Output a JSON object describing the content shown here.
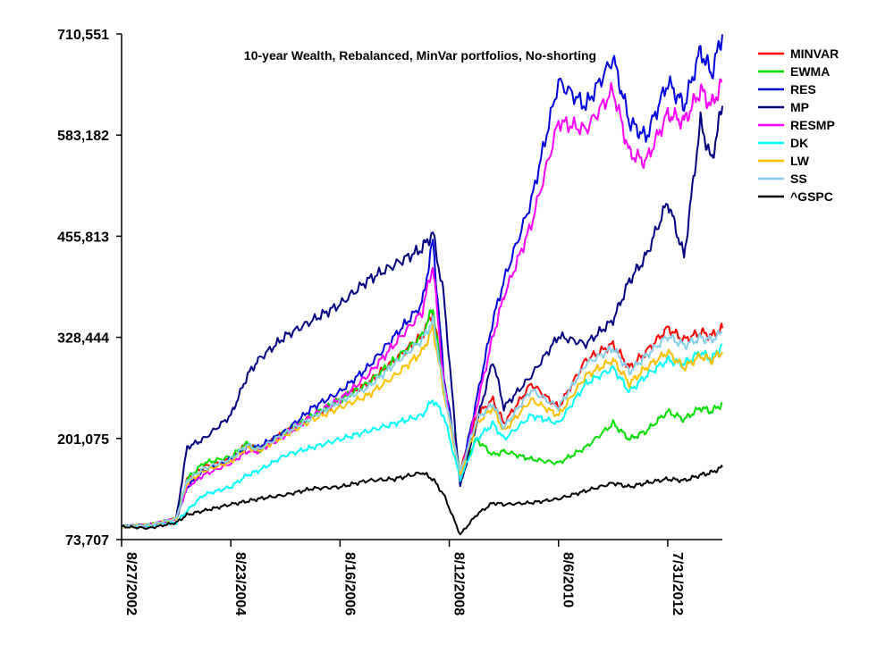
{
  "chart_data": {
    "type": "line",
    "title": "10-year Wealth, Rebalanced, MinVar portfolios, No-shorting",
    "xlabel": "",
    "ylabel": "",
    "ylim": [
      73707,
      710551
    ],
    "y_ticks": [
      "710,551",
      "583,182",
      "455,813",
      "328,444",
      "201,075",
      "73,707"
    ],
    "y_tick_values": [
      710551,
      583182,
      455813,
      328444,
      201075,
      73707
    ],
    "x_ticks": [
      "8/27/2002",
      "8/23/2004",
      "8/16/2006",
      "8/12/2008",
      "8/6/2010",
      "7/31/2012"
    ],
    "x_tick_years": [
      0,
      2,
      4,
      6,
      8,
      10
    ],
    "x": [
      0,
      0.5,
      1.0,
      1.2,
      1.5,
      2.0,
      2.3,
      2.5,
      3.0,
      3.5,
      4.0,
      4.5,
      5.0,
      5.5,
      5.7,
      5.9,
      6.2,
      6.5,
      6.8,
      7.0,
      7.5,
      8.0,
      8.5,
      9.0,
      9.3,
      9.6,
      10.0,
      10.3,
      10.6,
      10.8,
      11.0
    ],
    "series": [
      {
        "name": "MINVAR",
        "color": "#ff0000",
        "values": [
          90000,
          92000,
          100000,
          150000,
          165000,
          175000,
          195000,
          185000,
          210000,
          230000,
          250000,
          270000,
          300000,
          330000,
          360000,
          270000,
          160000,
          230000,
          250000,
          220000,
          270000,
          240000,
          300000,
          320000,
          290000,
          310000,
          340000,
          325000,
          335000,
          330000,
          340000
        ]
      },
      {
        "name": "EWMA",
        "color": "#00e000",
        "values": [
          90000,
          92000,
          100000,
          150000,
          170000,
          178000,
          195000,
          185000,
          210000,
          230000,
          250000,
          270000,
          300000,
          330000,
          365000,
          260000,
          160000,
          200000,
          180000,
          185000,
          175000,
          170000,
          190000,
          220000,
          200000,
          210000,
          235000,
          225000,
          240000,
          235000,
          245000
        ]
      },
      {
        "name": "RES",
        "color": "#0000dd",
        "values": [
          90000,
          92000,
          100000,
          140000,
          160000,
          175000,
          190000,
          190000,
          210000,
          240000,
          260000,
          290000,
          330000,
          370000,
          450000,
          280000,
          150000,
          250000,
          350000,
          400000,
          500000,
          650000,
          620000,
          680000,
          600000,
          580000,
          650000,
          620000,
          690000,
          660000,
          710000
        ]
      },
      {
        "name": "MP",
        "color": "#000080",
        "values": [
          90000,
          92000,
          100000,
          190000,
          200000,
          230000,
          280000,
          300000,
          330000,
          350000,
          370000,
          400000,
          420000,
          440000,
          460000,
          380000,
          140000,
          220000,
          300000,
          240000,
          280000,
          330000,
          320000,
          350000,
          400000,
          430000,
          500000,
          430000,
          600000,
          550000,
          620000
        ]
      },
      {
        "name": "RESMP",
        "color": "#ff00ff",
        "values": [
          90000,
          92000,
          100000,
          140000,
          155000,
          170000,
          185000,
          185000,
          205000,
          230000,
          250000,
          280000,
          320000,
          360000,
          420000,
          270000,
          150000,
          240000,
          330000,
          380000,
          470000,
          600000,
          590000,
          640000,
          560000,
          550000,
          610000,
          600000,
          640000,
          620000,
          650000
        ]
      },
      {
        "name": "DK",
        "color": "#00ffff",
        "values": [
          90000,
          91000,
          95000,
          110000,
          130000,
          140000,
          155000,
          160000,
          180000,
          190000,
          200000,
          210000,
          220000,
          230000,
          250000,
          230000,
          150000,
          200000,
          220000,
          200000,
          230000,
          220000,
          270000,
          290000,
          260000,
          280000,
          300000,
          295000,
          310000,
          300000,
          320000
        ]
      },
      {
        "name": "LW",
        "color": "#ffc000",
        "values": [
          90000,
          92000,
          100000,
          145000,
          160000,
          172000,
          190000,
          185000,
          205000,
          225000,
          240000,
          255000,
          280000,
          310000,
          340000,
          260000,
          155000,
          220000,
          240000,
          210000,
          250000,
          230000,
          280000,
          300000,
          270000,
          290000,
          310000,
          290000,
          305000,
          300000,
          310000
        ]
      },
      {
        "name": "SS",
        "color": "#87ceeb",
        "values": [
          90000,
          92000,
          100000,
          148000,
          163000,
          175000,
          193000,
          187000,
          208000,
          228000,
          248000,
          265000,
          295000,
          325000,
          350000,
          265000,
          158000,
          225000,
          245000,
          215000,
          262000,
          240000,
          295000,
          315000,
          285000,
          305000,
          330000,
          318000,
          328000,
          325000,
          335000
        ]
      },
      {
        "name": "^GSPC",
        "color": "#000000",
        "values": [
          90000,
          88000,
          95000,
          105000,
          110000,
          118000,
          122000,
          125000,
          130000,
          138000,
          140000,
          148000,
          150000,
          158000,
          150000,
          130000,
          80000,
          105000,
          120000,
          118000,
          120000,
          125000,
          135000,
          145000,
          140000,
          145000,
          150000,
          148000,
          155000,
          158000,
          165000
        ]
      }
    ]
  }
}
